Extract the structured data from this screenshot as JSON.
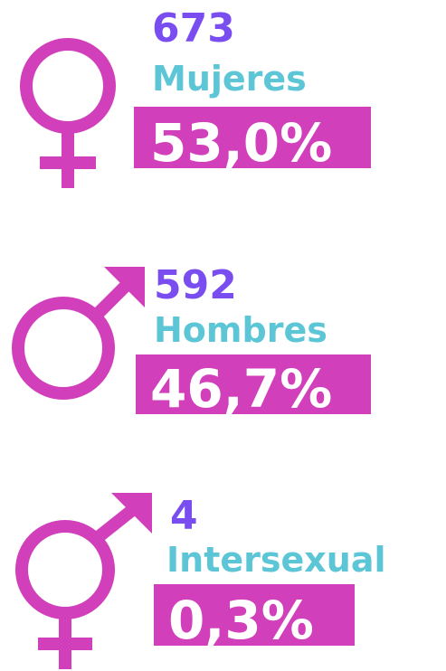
{
  "items": [
    {
      "count": 673,
      "label": "Mujeres",
      "percent": "53,0%"
    },
    {
      "count": 592,
      "label": "Hombres",
      "percent": "46,7%"
    },
    {
      "count": 4,
      "label": "Intersexual",
      "percent": "0,3%"
    }
  ]
}
